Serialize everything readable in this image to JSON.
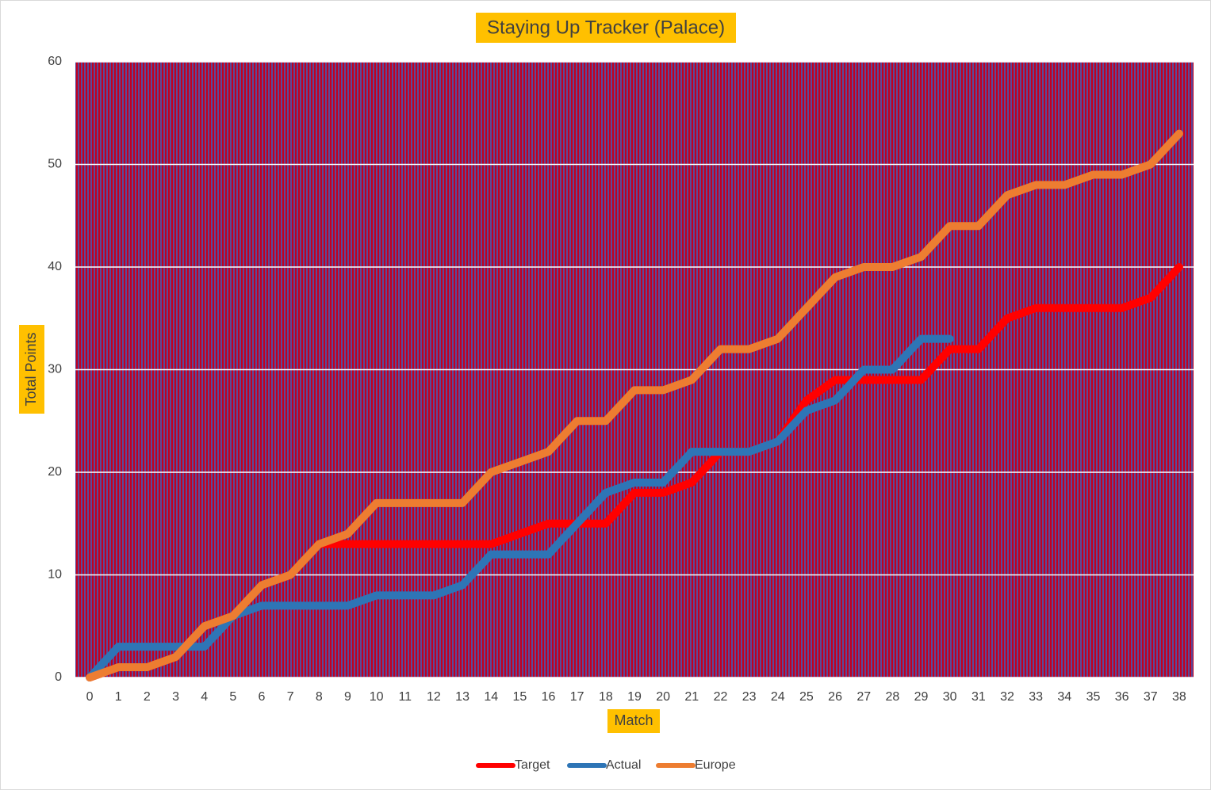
{
  "chart_data": {
    "type": "line",
    "title": "Staying Up Tracker  (Palace)",
    "x_label": "Match",
    "y_label": "Total Points",
    "categories": [
      "0",
      "1",
      "2",
      "3",
      "4",
      "5",
      "6",
      "7",
      "8",
      "9",
      "10",
      "11",
      "12",
      "13",
      "14",
      "15",
      "16",
      "17",
      "18",
      "19",
      "20",
      "21",
      "22",
      "23",
      "24",
      "25",
      "26",
      "27",
      "28",
      "29",
      "30",
      "31",
      "32",
      "33",
      "34",
      "35",
      "36",
      "37",
      "38"
    ],
    "series": [
      {
        "name": "Target",
        "color": "#ff0000",
        "values": [
          0,
          1,
          1,
          2,
          5,
          6,
          9,
          10,
          13,
          13,
          13,
          13,
          13,
          13,
          13,
          14,
          15,
          15,
          15,
          18,
          18,
          19,
          22,
          22,
          23,
          27,
          29,
          29,
          29,
          29,
          32,
          32,
          35,
          36,
          36,
          36,
          36,
          37,
          40
        ]
      },
      {
        "name": "Actual",
        "color": "#2e75b6",
        "values": [
          0,
          3,
          3,
          3,
          3,
          6,
          7,
          7,
          7,
          7,
          8,
          8,
          8,
          9,
          12,
          12,
          12,
          15,
          18,
          19,
          19,
          22,
          22,
          22,
          23,
          26,
          27,
          30,
          30,
          33,
          33,
          null,
          null,
          null,
          null,
          null,
          null,
          null,
          null
        ]
      },
      {
        "name": "Europe",
        "color": "#ed7d31",
        "values": [
          0,
          1,
          1,
          2,
          5,
          6,
          9,
          10,
          13,
          14,
          17,
          17,
          17,
          17,
          20,
          21,
          22,
          25,
          25,
          28,
          28,
          29,
          32,
          32,
          33,
          36,
          39,
          40,
          40,
          41,
          44,
          44,
          47,
          48,
          48,
          49,
          49,
          50,
          53
        ]
      }
    ],
    "ylim": [
      0,
      60
    ],
    "yticks": [
      0,
      10,
      20,
      30,
      40,
      50,
      60
    ],
    "grid": true,
    "legend": "bottom"
  }
}
